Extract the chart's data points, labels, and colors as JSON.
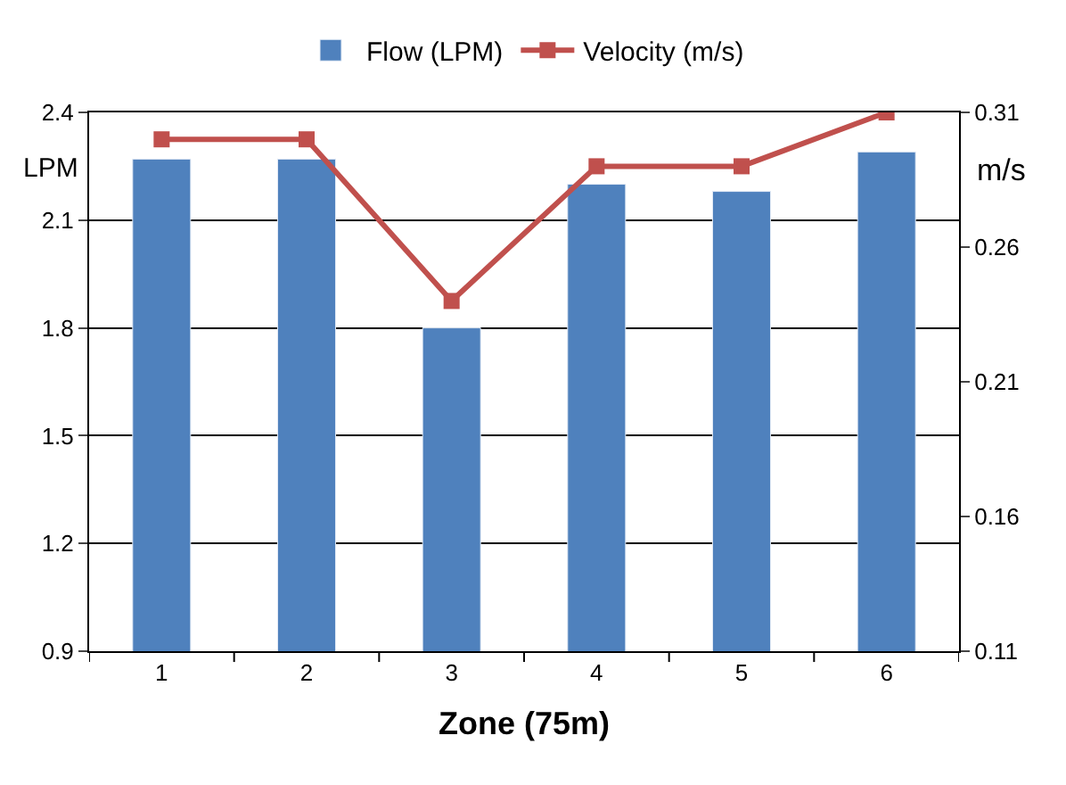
{
  "chart_data": {
    "type": "bar",
    "xlabel": "Zone (75m)",
    "ylabel": "LPM",
    "y2label": "m/s",
    "categories": [
      "1",
      "2",
      "3",
      "4",
      "5",
      "6"
    ],
    "series": [
      {
        "name": "Flow (LPM)",
        "color": "#4f81bd",
        "values": [
          2.27,
          2.27,
          1.8,
          2.2,
          2.18,
          2.29
        ]
      },
      {
        "name": "Velocity (m/s)",
        "color": "#c0504d",
        "type": "line",
        "axis": "y2",
        "marker": "square",
        "values": [
          0.3,
          0.3,
          0.24,
          0.29,
          0.29,
          0.31
        ]
      }
    ],
    "ylim": [
      0.9,
      2.4
    ],
    "yticks": [
      0.9,
      1.2,
      1.5,
      1.8,
      2.1,
      2.4
    ],
    "y2lim": [
      0.11,
      0.31
    ],
    "y2ticks": [
      0.11,
      0.16,
      0.21,
      0.26,
      0.31
    ],
    "grid": "y",
    "legend": "top"
  }
}
